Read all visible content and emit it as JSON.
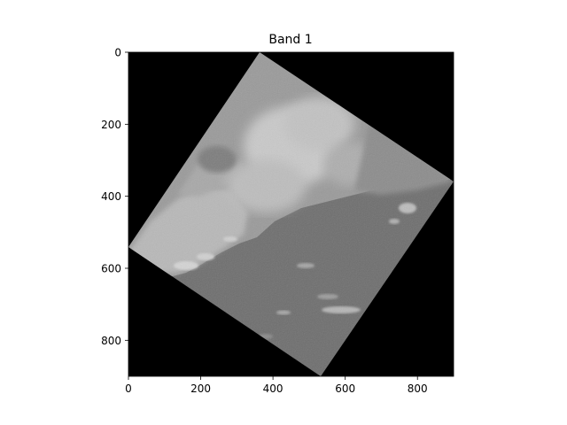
{
  "title": "Band 1",
  "image": {
    "description_colors": {
      "background": "#000000",
      "water": "#6b6b6b",
      "land_light": "#b5b5b5",
      "land_mid": "#979797",
      "cloud": "#d8d8d8"
    }
  },
  "axes": {
    "xlim": [
      0,
      900
    ],
    "ylim": [
      900,
      0
    ],
    "x_ticks": [
      0,
      200,
      400,
      600,
      800
    ],
    "y_ticks": [
      0,
      200,
      400,
      600,
      800
    ]
  }
}
